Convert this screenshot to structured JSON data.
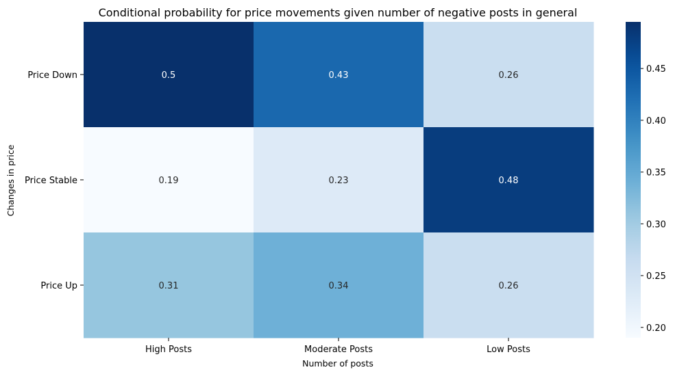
{
  "chart_data": {
    "type": "heatmap",
    "title": "Conditional probability for price movements given number of negative posts in general",
    "xlabel": "Number of posts",
    "ylabel": "Changes in price",
    "x_categories": [
      "High Posts",
      "Moderate Posts",
      "Low Posts"
    ],
    "y_categories": [
      "Price Down",
      "Price Stable",
      "Price Up"
    ],
    "values": [
      [
        0.5,
        0.43,
        0.26
      ],
      [
        0.19,
        0.23,
        0.48
      ],
      [
        0.31,
        0.34,
        0.26
      ]
    ],
    "cell_labels": [
      [
        "0.5",
        "0.43",
        "0.26"
      ],
      [
        "0.19",
        "0.23",
        "0.48"
      ],
      [
        "0.31",
        "0.34",
        "0.26"
      ]
    ],
    "colormap": "Blues",
    "colorbar": {
      "range": [
        0.19,
        0.495
      ],
      "ticks": [
        0.2,
        0.25,
        0.3,
        0.35,
        0.4,
        0.45
      ],
      "tick_labels": [
        "0.20",
        "0.25",
        "0.30",
        "0.35",
        "0.40",
        "0.45"
      ]
    },
    "grid": false
  }
}
